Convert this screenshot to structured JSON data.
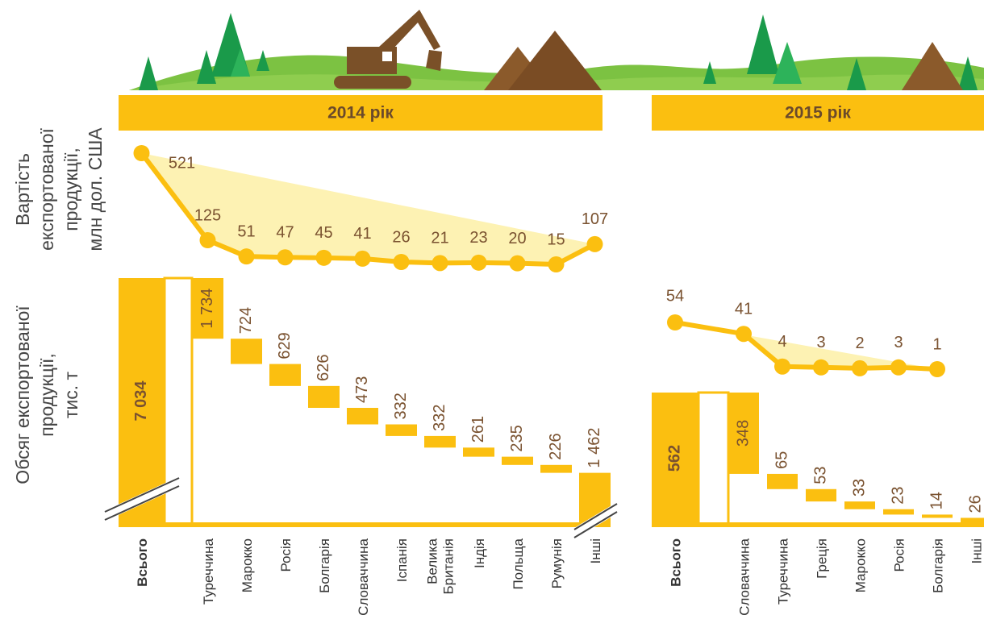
{
  "axis_labels": {
    "value": [
      "Вартість",
      "експортованої",
      "продукції,",
      "млн дол. США"
    ],
    "volume": [
      "Обсяг експортованої",
      "продукції,",
      "тис. т"
    ]
  },
  "chart_data": [
    {
      "type": "waterfall",
      "title": "2014 рік",
      "categories": [
        "Всього",
        "Туреччина",
        "Марокко",
        "Росія",
        "Болгарія",
        "Словаччина",
        "Іспанія",
        "Велика Британія",
        "Індія",
        "Польща",
        "Румунія",
        "Інші"
      ],
      "values": [
        7034,
        1734,
        724,
        629,
        626,
        473,
        332,
        332,
        261,
        235,
        226,
        1462
      ],
      "value_labels": [
        "7 034",
        "1 734",
        "724",
        "629",
        "626",
        "473",
        "332",
        "332",
        "261",
        "235",
        "226",
        "1 462"
      ],
      "line_values": [
        521,
        125,
        51,
        47,
        45,
        41,
        26,
        21,
        23,
        20,
        15,
        107
      ],
      "color": "#fbbf10",
      "line_fill": "#fdf2b3"
    },
    {
      "type": "waterfall",
      "title": "2015 рік",
      "categories": [
        "Всього",
        "Словаччина",
        "Туреччина",
        "Греція",
        "Марокко",
        "Росія",
        "Болгарія",
        "Інші"
      ],
      "values": [
        562,
        348,
        65,
        53,
        33,
        23,
        14,
        26
      ],
      "value_labels": [
        "562",
        "348",
        "65",
        "53",
        "33",
        "23",
        "14",
        "26"
      ],
      "line_values": [
        54,
        41,
        4,
        3,
        2,
        3,
        1,
        null
      ],
      "color": "#fbbf10",
      "line_fill": "#fdf2b3"
    }
  ]
}
